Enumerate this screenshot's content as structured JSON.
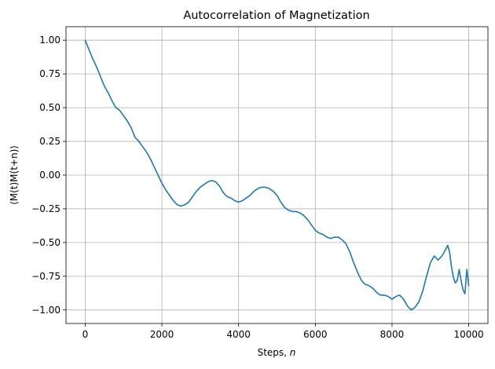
{
  "chart_data": {
    "type": "line",
    "title": "Autocorrelation of Magnetization",
    "xlabel": "Steps, n",
    "ylabel": "⟨M(t)M(t+n)⟩",
    "xlim": [
      -500,
      10500
    ],
    "ylim": [
      -1.1,
      1.1
    ],
    "xticks": [
      0,
      2000,
      4000,
      6000,
      8000,
      10000
    ],
    "xtick_labels": [
      "0",
      "2000",
      "4000",
      "6000",
      "8000",
      "10000"
    ],
    "yticks": [
      1.0,
      0.75,
      0.5,
      0.25,
      0.0,
      -0.25,
      -0.5,
      -0.75,
      -1.0
    ],
    "ytick_labels": [
      "1.00",
      "0.75",
      "0.50",
      "0.25",
      "0.00",
      "−0.25",
      "−0.50",
      "−0.75",
      "−1.00"
    ],
    "grid": true,
    "series": [
      {
        "color": "#1f77b4",
        "x": [
          0,
          100,
          200,
          300,
          400,
          500,
          600,
          700,
          800,
          900,
          1000,
          1100,
          1200,
          1300,
          1400,
          1500,
          1600,
          1700,
          1800,
          1900,
          2000,
          2100,
          2200,
          2300,
          2400,
          2500,
          2600,
          2700,
          2800,
          2900,
          3000,
          3100,
          3200,
          3300,
          3400,
          3500,
          3600,
          3700,
          3800,
          3900,
          4000,
          4100,
          4200,
          4300,
          4400,
          4500,
          4600,
          4700,
          4800,
          4900,
          5000,
          5100,
          5200,
          5300,
          5400,
          5500,
          5600,
          5700,
          5800,
          5900,
          6000,
          6100,
          6200,
          6300,
          6400,
          6500,
          6600,
          6700,
          6800,
          6900,
          7000,
          7100,
          7200,
          7300,
          7400,
          7500,
          7600,
          7700,
          7800,
          7900,
          8000,
          8100,
          8200,
          8300,
          8400,
          8500,
          8600,
          8700,
          8800,
          8900,
          9000,
          9100,
          9200,
          9300,
          9400,
          9450,
          9500,
          9550,
          9600,
          9650,
          9700,
          9750,
          9800,
          9850,
          9900,
          9950,
          10000
        ],
        "y": [
          1.0,
          0.93,
          0.86,
          0.8,
          0.73,
          0.66,
          0.61,
          0.55,
          0.5,
          0.48,
          0.44,
          0.4,
          0.35,
          0.28,
          0.25,
          0.21,
          0.17,
          0.12,
          0.06,
          0.0,
          -0.06,
          -0.11,
          -0.15,
          -0.19,
          -0.22,
          -0.23,
          -0.22,
          -0.2,
          -0.16,
          -0.12,
          -0.09,
          -0.07,
          -0.05,
          -0.04,
          -0.05,
          -0.08,
          -0.13,
          -0.16,
          -0.17,
          -0.19,
          -0.2,
          -0.19,
          -0.17,
          -0.15,
          -0.12,
          -0.1,
          -0.09,
          -0.09,
          -0.1,
          -0.12,
          -0.15,
          -0.2,
          -0.24,
          -0.26,
          -0.27,
          -0.27,
          -0.28,
          -0.3,
          -0.33,
          -0.37,
          -0.41,
          -0.43,
          -0.44,
          -0.46,
          -0.47,
          -0.46,
          -0.46,
          -0.48,
          -0.51,
          -0.57,
          -0.65,
          -0.72,
          -0.78,
          -0.81,
          -0.82,
          -0.84,
          -0.87,
          -0.89,
          -0.89,
          -0.9,
          -0.92,
          -0.9,
          -0.89,
          -0.92,
          -0.97,
          -1.0,
          -0.98,
          -0.94,
          -0.86,
          -0.75,
          -0.65,
          -0.6,
          -0.63,
          -0.6,
          -0.55,
          -0.52,
          -0.57,
          -0.68,
          -0.76,
          -0.8,
          -0.78,
          -0.7,
          -0.78,
          -0.85,
          -0.88,
          -0.7,
          -0.82
        ]
      }
    ]
  }
}
